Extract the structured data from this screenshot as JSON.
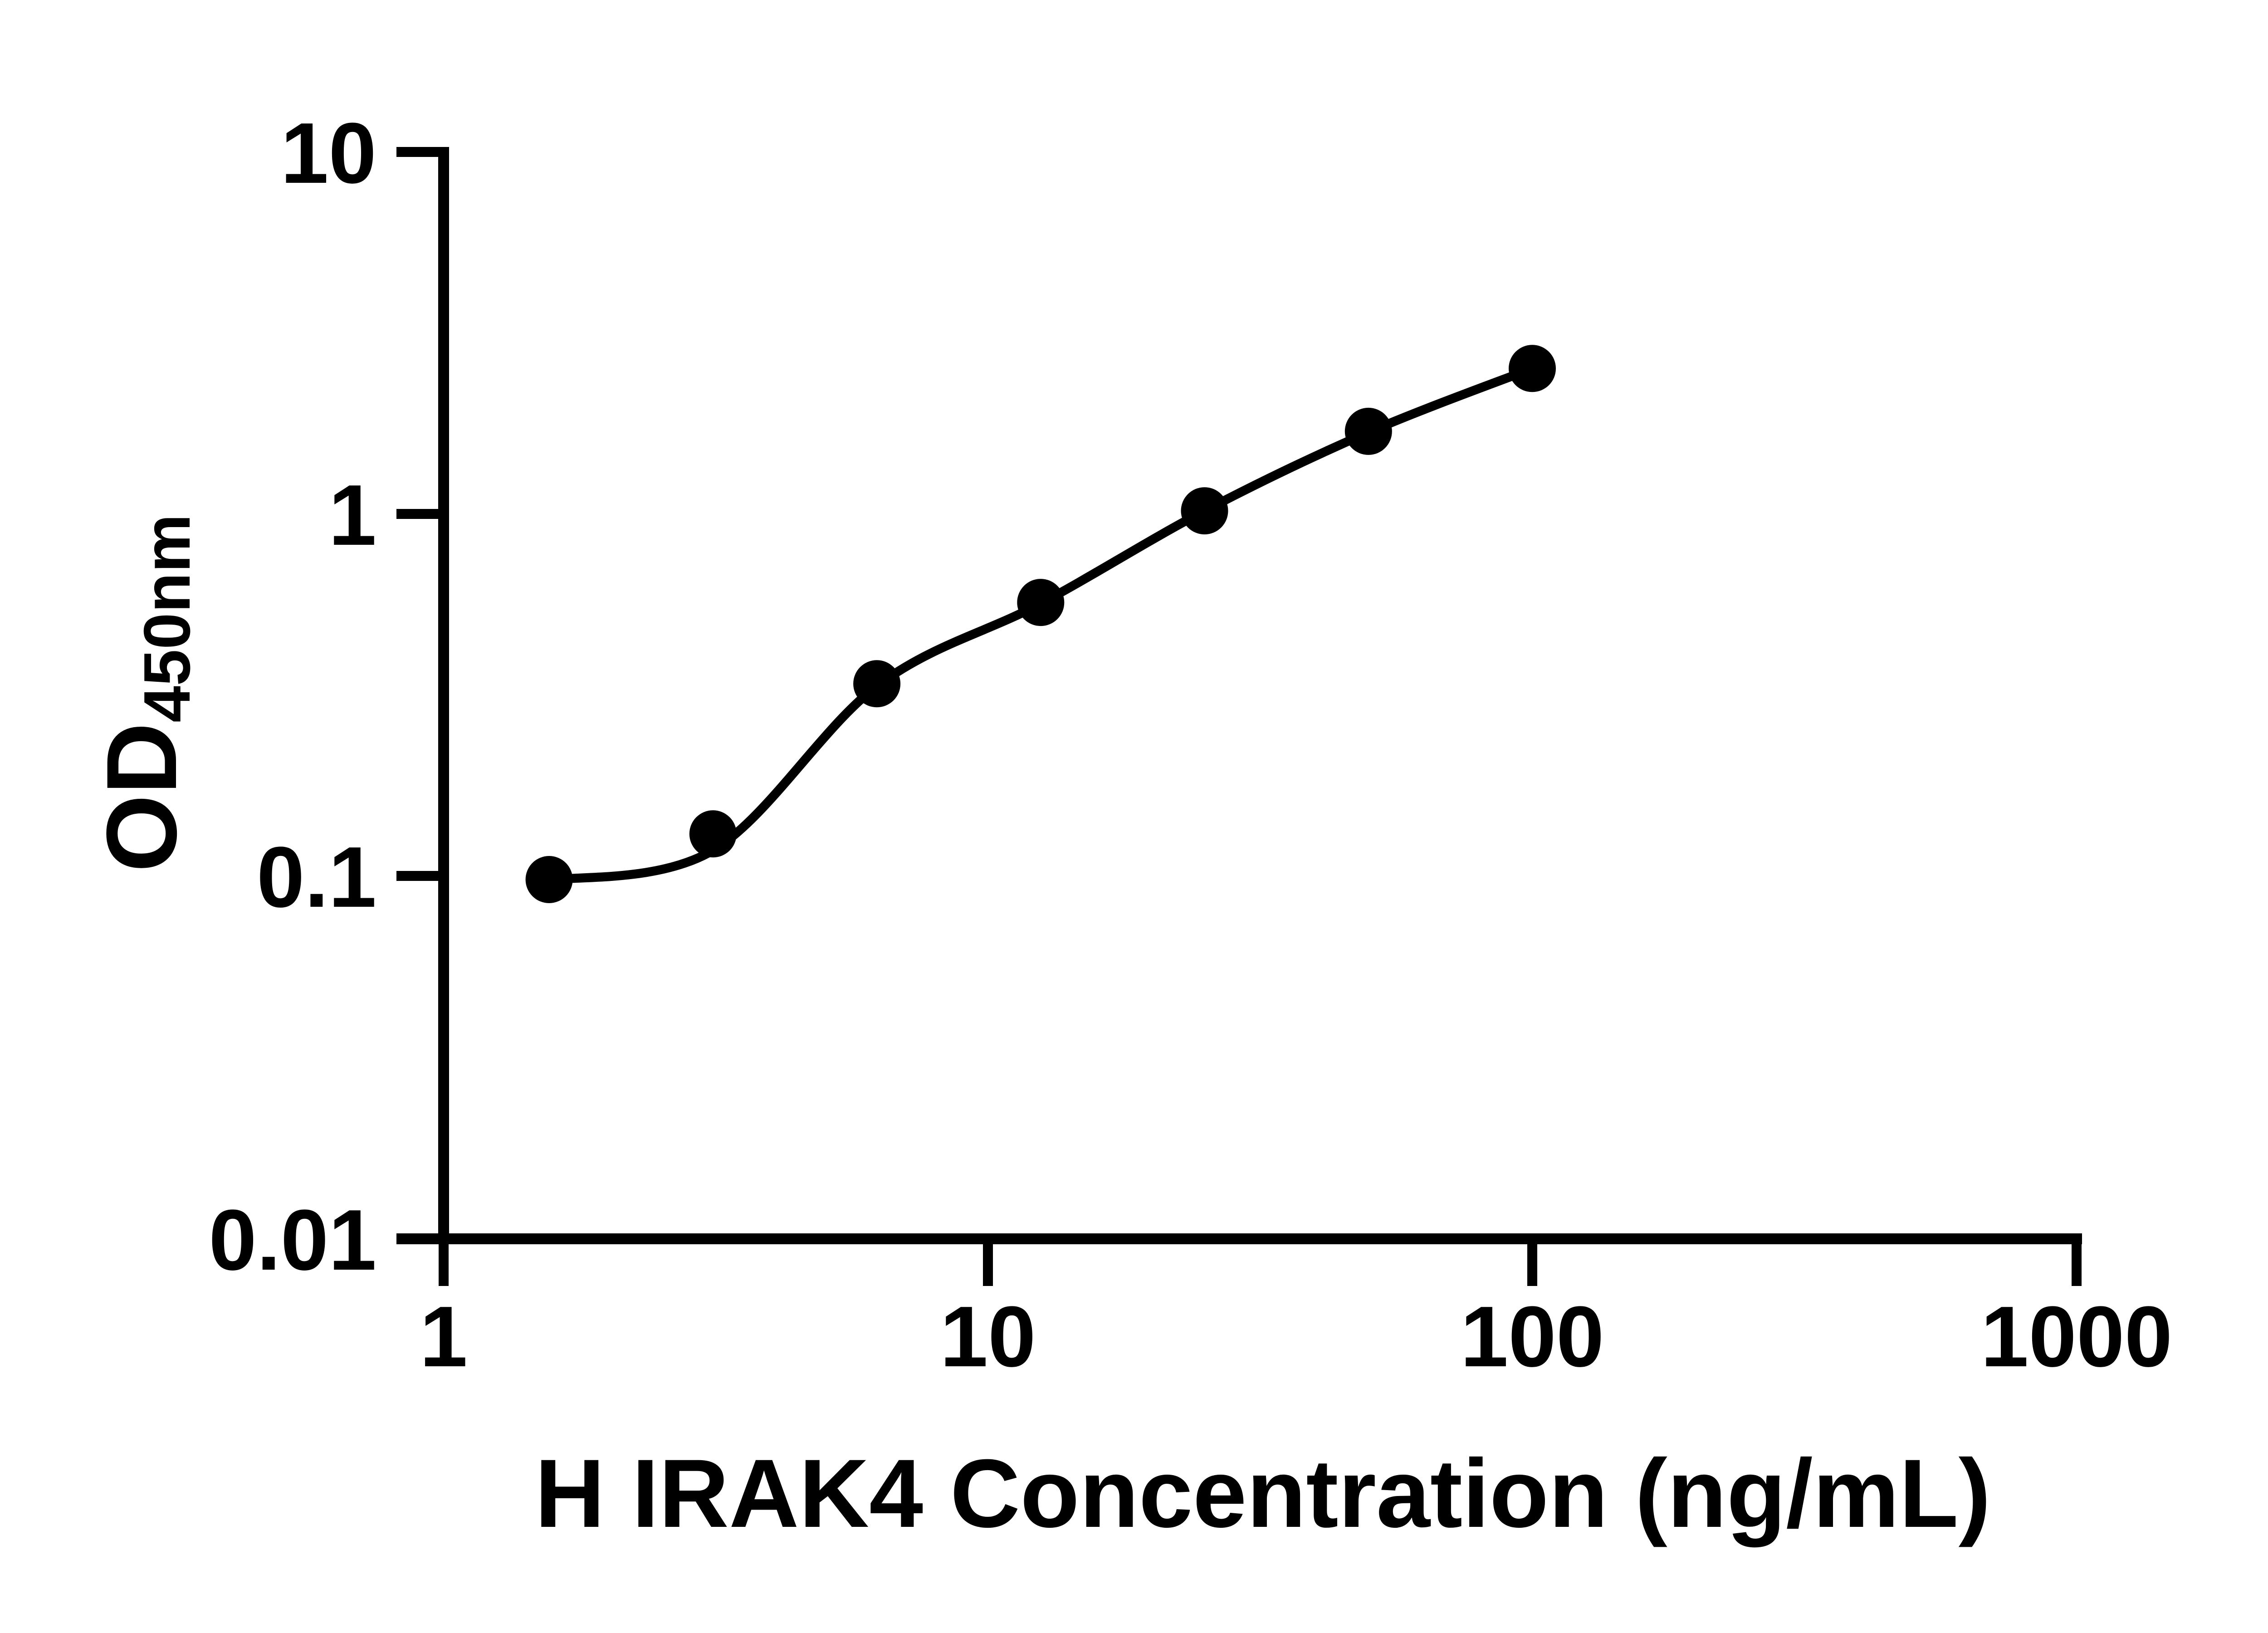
{
  "chart_data": {
    "type": "scatter",
    "subtype": "standard-curve-with-fit-line",
    "title": "",
    "xlabel": "H IRAK4 Concentration (ng/mL)",
    "ylabel": {
      "main": "OD",
      "sub": "450nm"
    },
    "grid": false,
    "legend": "none",
    "colors": {
      "foreground": "#000000",
      "background": "#ffffff"
    },
    "x_axis": {
      "scale": "log10",
      "range": [
        1,
        1000
      ],
      "ticks": [
        {
          "value": 1,
          "label": "1"
        },
        {
          "value": 10,
          "label": "10"
        },
        {
          "value": 100,
          "label": "100"
        },
        {
          "value": 1000,
          "label": "1000"
        }
      ]
    },
    "y_axis": {
      "scale": "log10",
      "range": [
        0.01,
        10
      ],
      "ticks": [
        {
          "value": 10,
          "label": "10"
        },
        {
          "value": 1,
          "label": "1"
        },
        {
          "value": 0.1,
          "label": "0.1"
        },
        {
          "value": 0.01,
          "label": "0.01"
        }
      ]
    },
    "series": [
      {
        "marker": "filled-circle",
        "color": "#000000",
        "points": [
          {
            "x": 1.5625,
            "y": 0.098
          },
          {
            "x": 3.125,
            "y": 0.131
          },
          {
            "x": 6.25,
            "y": 0.34
          },
          {
            "x": 12.5,
            "y": 0.57
          },
          {
            "x": 25,
            "y": 1.02
          },
          {
            "x": 50,
            "y": 1.69
          },
          {
            "x": 100,
            "y": 2.52
          }
        ]
      }
    ],
    "fit_curve": {
      "color": "#000000",
      "points": [
        [
          1.5625,
          0.0975
        ],
        [
          3.125,
          0.118
        ],
        [
          6.25,
          0.335
        ],
        [
          12.5,
          0.566
        ],
        [
          25,
          1.02
        ],
        [
          50,
          1.68
        ],
        [
          100,
          2.52
        ]
      ]
    }
  }
}
